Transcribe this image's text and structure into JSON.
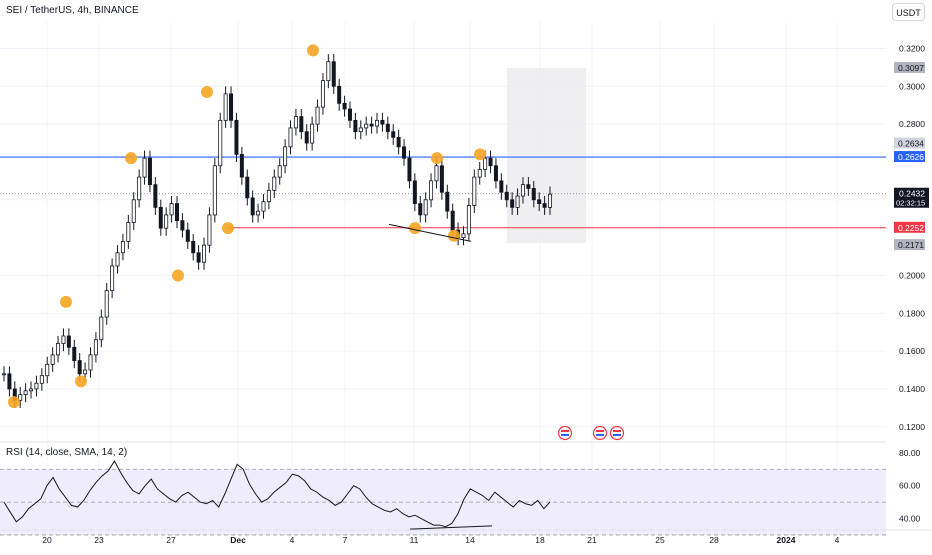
{
  "header": {
    "symbol_legend": "SEI / TetherUS, 4h, BINANCE",
    "currency": "USDT"
  },
  "rsi_pane": {
    "legend": "RSI (14, close, SMA, 14, 2)",
    "axis_labels": [
      "80.00",
      "60.00",
      "40.00"
    ]
  },
  "price_axis": {
    "tick_labels": [
      "0.3200",
      "0.3000",
      "0.2800",
      "0.2400",
      "0.2000",
      "0.1800",
      "0.1600",
      "0.1400",
      "0.1200"
    ]
  },
  "time_axis": {
    "labels": [
      "20",
      "23",
      "27",
      "Dec",
      "4",
      "7",
      "11",
      "14",
      "18",
      "21",
      "25",
      "28",
      "2024",
      "4"
    ]
  },
  "price_tags": {
    "target": "0.3097",
    "resistance_upper": "0.2634",
    "resistance": "0.2626",
    "last_price": "0.2432",
    "countdown": "02:32:15",
    "support": "0.2252",
    "stop": "0.2171"
  },
  "colors": {
    "candle": "#131722",
    "resistance_line": "#2962ff",
    "support_line": "#f23645",
    "pivot_marker": "#f5a524",
    "rsi_line": "#131722",
    "rsi_band": "#efedfb",
    "rsi_overbought": "#3fa95c",
    "projection_box": "#ececee"
  },
  "chart_data": {
    "type": "line",
    "title": "SEI / TetherUS, 4h, BINANCE",
    "xlabel": "",
    "ylabel": "",
    "x_ticks": [
      "20",
      "23",
      "27",
      "Dec",
      "4",
      "7",
      "11",
      "14",
      "18",
      "21",
      "25",
      "28",
      "2024",
      "4"
    ],
    "y_ticks": [
      0.32,
      0.3,
      0.28,
      0.24,
      0.2,
      0.18,
      0.16,
      0.14,
      0.12
    ],
    "ylim": [
      0.113,
      0.334
    ],
    "grid": true,
    "series": [
      {
        "values": [
          0.148,
          0.14,
          0.134,
          0.137,
          0.139,
          0.14,
          0.143,
          0.147,
          0.153,
          0.158,
          0.164,
          0.168,
          0.162,
          0.155,
          0.148,
          0.15,
          0.158,
          0.166,
          0.178,
          0.192,
          0.205,
          0.212,
          0.218,
          0.228,
          0.24,
          0.252,
          0.262,
          0.248,
          0.236,
          0.225,
          0.232,
          0.238,
          0.229,
          0.224,
          0.218,
          0.212,
          0.207,
          0.216,
          0.232,
          0.258,
          0.282,
          0.296,
          0.282,
          0.264,
          0.252,
          0.241,
          0.232,
          0.234,
          0.239,
          0.245,
          0.252,
          0.258,
          0.268,
          0.278,
          0.284,
          0.276,
          0.27,
          0.28,
          0.289,
          0.303,
          0.313,
          0.3,
          0.291,
          0.288,
          0.282,
          0.276,
          0.278,
          0.28,
          0.279,
          0.282,
          0.28,
          0.276,
          0.273,
          0.268,
          0.262,
          0.25,
          0.238,
          0.232,
          0.24,
          0.25,
          0.258,
          0.244,
          0.234,
          0.224,
          0.22,
          0.222,
          0.237,
          0.252,
          0.256,
          0.262,
          0.258,
          0.25,
          0.244,
          0.24,
          0.236,
          0.242,
          0.248,
          0.246,
          0.24,
          0.238,
          0.236,
          0.243
        ]
      }
    ],
    "rsi": {
      "ylim": [
        33,
        86
      ],
      "levels": [
        70,
        50,
        30
      ],
      "values": [
        50,
        44,
        38,
        41,
        46,
        49,
        52,
        60,
        65,
        58,
        53,
        48,
        47,
        51,
        57,
        62,
        66,
        69,
        75,
        68,
        62,
        57,
        55,
        60,
        64,
        58,
        55,
        52,
        50,
        54,
        56,
        53,
        50,
        49,
        51,
        47,
        55,
        64,
        73,
        70,
        61,
        55,
        50,
        52,
        56,
        59,
        62,
        67,
        66,
        63,
        58,
        56,
        53,
        51,
        48,
        50,
        55,
        60,
        58,
        53,
        49,
        47,
        45,
        44,
        46,
        43,
        41,
        42,
        40,
        38,
        36,
        36,
        35,
        37,
        43,
        52,
        58,
        56,
        54,
        51,
        56,
        53,
        50,
        47,
        51,
        49,
        48,
        51,
        46,
        50
      ]
    },
    "annotations": {
      "resistance": 0.2626,
      "support": 0.2252,
      "target": 0.3097,
      "stop": 0.2171,
      "last_price": 0.2432
    }
  }
}
